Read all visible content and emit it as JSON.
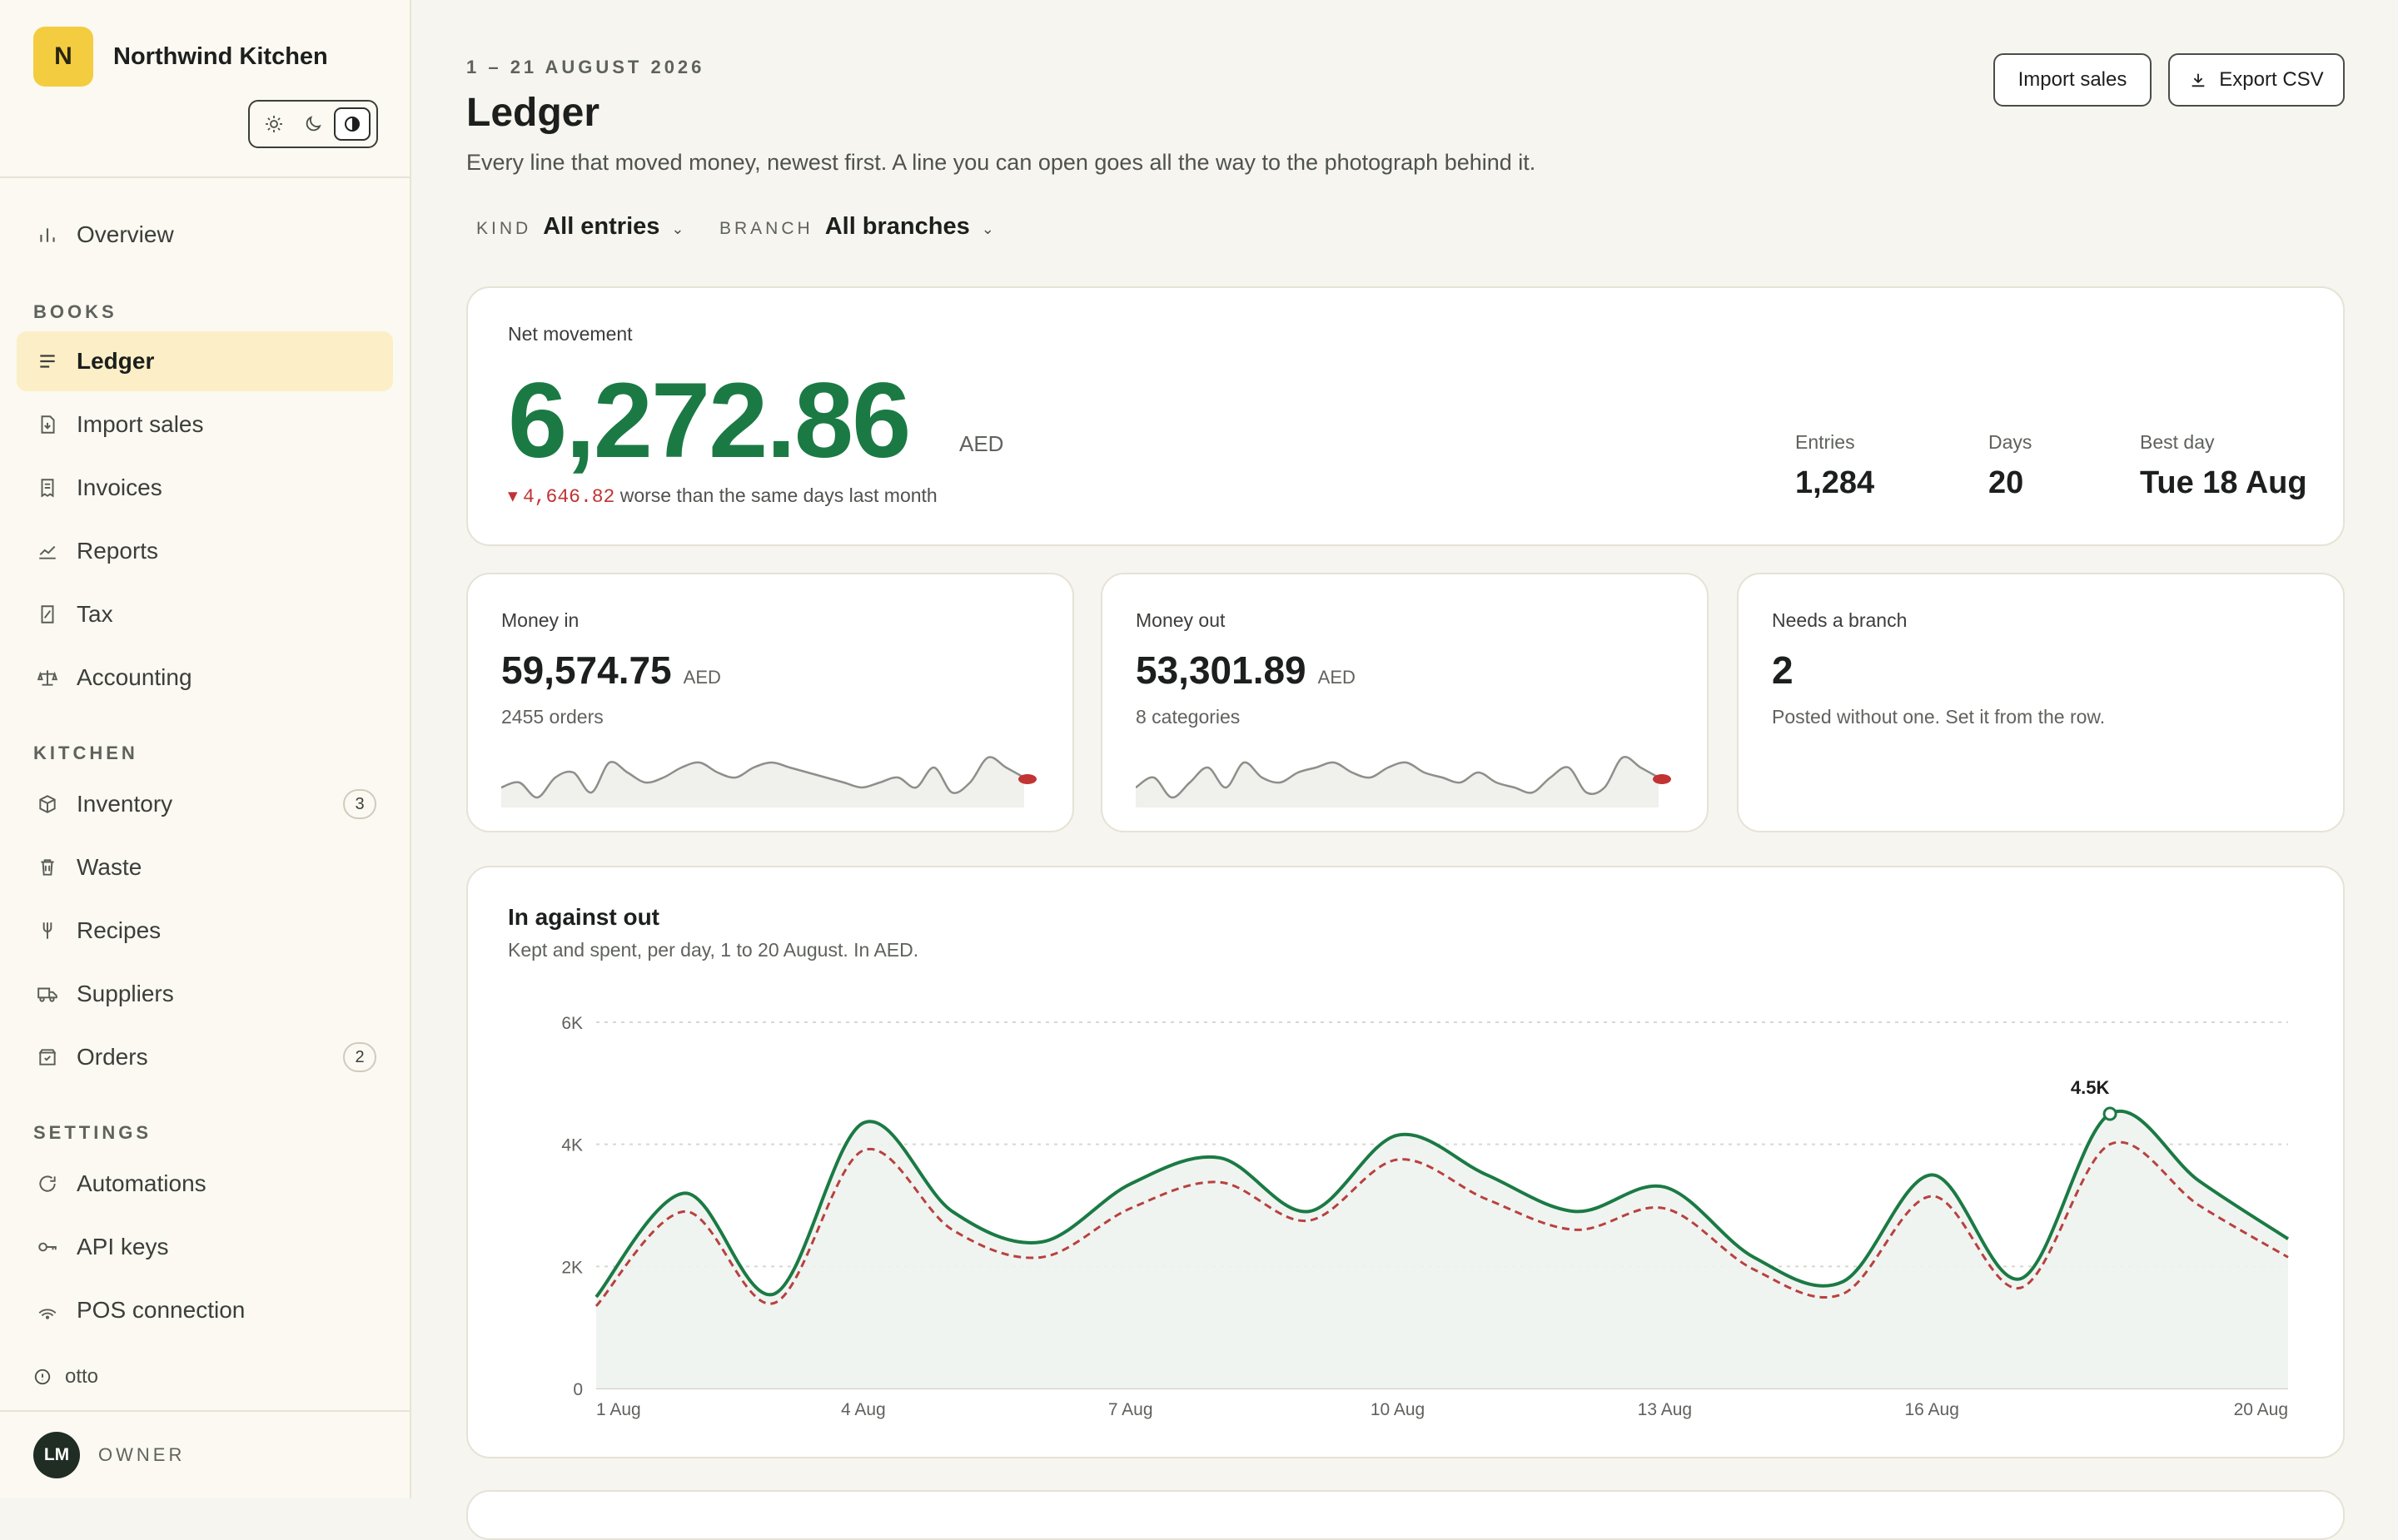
{
  "brand": {
    "initial": "N",
    "name": "Northwind Kitchen"
  },
  "theme": {
    "options": [
      "sun-icon",
      "moon-icon",
      "contrast-icon"
    ],
    "active": "contrast-icon"
  },
  "nav": {
    "overview": "Overview",
    "sections": {
      "books": "BOOKS",
      "kitchen": "KITCHEN",
      "settings": "SETTINGS"
    },
    "books": [
      "Ledger",
      "Import sales",
      "Invoices",
      "Reports",
      "Tax",
      "Accounting"
    ],
    "kitchen": [
      "Inventory",
      "Waste",
      "Recipes",
      "Suppliers",
      "Orders"
    ],
    "settings": [
      "Automations",
      "API keys",
      "POS connection"
    ],
    "badges": {
      "inventory": "3",
      "orders": "2"
    },
    "active": "Ledger"
  },
  "footer": {
    "otto": "otto",
    "initials": "LM",
    "role": "OWNER"
  },
  "header": {
    "eyebrow": "1 – 21 AUGUST 2026",
    "title": "Ledger",
    "subtitle": "Every line that moved money, newest first. A line you can open goes all the way to the photograph behind it.",
    "import_label": "Import sales",
    "export_label": "Export CSV"
  },
  "filters": {
    "kind_key": "KIND",
    "kind_value": "All entries",
    "branch_key": "BRANCH",
    "branch_value": "All branches"
  },
  "net": {
    "label": "Net movement",
    "value": "6,272.86",
    "unit": "AED",
    "delta_arrow": "▾",
    "delta_value": "4,646.82",
    "delta_text": "worse than the same days last month",
    "stats": [
      {
        "key": "Entries",
        "value": "1,284"
      },
      {
        "key": "Days",
        "value": "20"
      },
      {
        "key": "Best day",
        "value": "Tue 18 Aug"
      }
    ]
  },
  "money_in": {
    "label": "Money in",
    "value": "59,574.75",
    "unit": "AED",
    "sub": "2455 orders"
  },
  "money_out": {
    "label": "Money out",
    "value": "53,301.89",
    "unit": "AED",
    "sub": "8 categories"
  },
  "needs_branch": {
    "label": "Needs a branch",
    "value": "2",
    "sub": "Posted without one. Set it from the row."
  },
  "colors": {
    "accent": "#1b7a44",
    "negative": "#c23333",
    "brand": "#f3cd3f",
    "active_nav": "#fcefc7"
  },
  "chart_data": {
    "type": "line",
    "title": "In against out",
    "subtitle": "Kept and spent, per day, 1 to 20 August. In AED.",
    "x": [
      "1 Aug",
      "2 Aug",
      "3 Aug",
      "4 Aug",
      "5 Aug",
      "6 Aug",
      "7 Aug",
      "8 Aug",
      "9 Aug",
      "10 Aug",
      "11 Aug",
      "12 Aug",
      "13 Aug",
      "14 Aug",
      "15 Aug",
      "16 Aug",
      "17 Aug",
      "18 Aug",
      "19 Aug",
      "20 Aug"
    ],
    "x_ticks": [
      "1 Aug",
      "4 Aug",
      "7 Aug",
      "10 Aug",
      "13 Aug",
      "16 Aug",
      "20 Aug"
    ],
    "y_ticks": [
      "0",
      "2K",
      "4K",
      "6K"
    ],
    "ylim": [
      0,
      6000
    ],
    "grid": true,
    "series": [
      {
        "values": [
          1500,
          3200,
          1550,
          4350,
          2900,
          2400,
          3350,
          3780,
          2900,
          4150,
          3500,
          2900,
          3300,
          2150,
          1750,
          3500,
          1800,
          4500,
          3400,
          2450
        ]
      },
      {
        "values": [
          1350,
          2900,
          1400,
          3900,
          2600,
          2150,
          2950,
          3380,
          2750,
          3750,
          3100,
          2600,
          2950,
          1950,
          1550,
          3150,
          1650,
          4000,
          3000,
          2150
        ]
      }
    ],
    "annotation": {
      "x": "18 Aug",
      "label": "4.5K"
    }
  },
  "spark_in": [
    20,
    22,
    16,
    24,
    26,
    18,
    30,
    26,
    22,
    24,
    28,
    30,
    26,
    24,
    28,
    30,
    28,
    26,
    24,
    22,
    20,
    22,
    24,
    20,
    28,
    18,
    22,
    32,
    28,
    24
  ],
  "spark_out": [
    20,
    24,
    16,
    22,
    28,
    20,
    30,
    24,
    22,
    26,
    28,
    30,
    26,
    24,
    28,
    30,
    26,
    24,
    22,
    26,
    22,
    20,
    18,
    24,
    28,
    18,
    20,
    32,
    28,
    24
  ]
}
